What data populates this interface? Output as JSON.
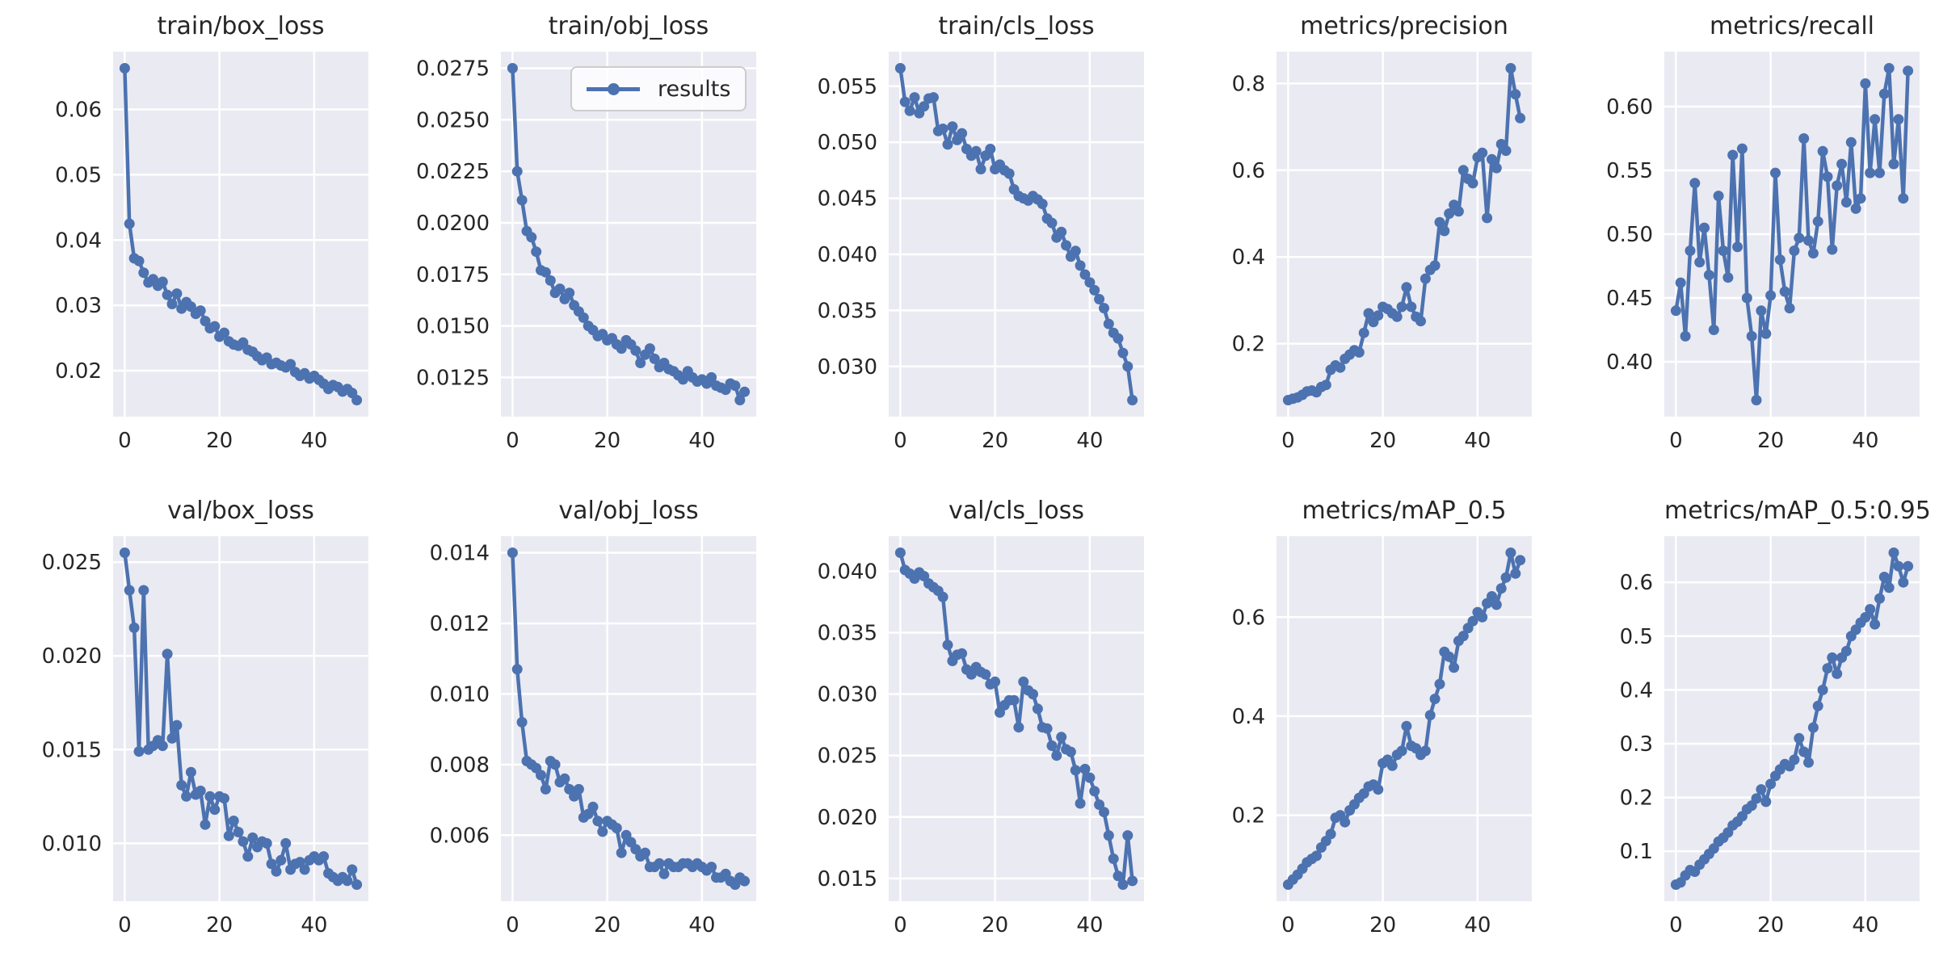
{
  "figure": {
    "background": "#ffffff",
    "rows": 2,
    "cols": 5,
    "description": "Training results grid of 10 line subplots over 50 epochs"
  },
  "style": {
    "line_color": "#4C72B0",
    "axes_bg": "#EAEAF2",
    "grid_color": "#ffffff",
    "text_color": "#262626",
    "legend_bg": "rgba(255,255,255,0.8)",
    "legend_border": "#cccccc"
  },
  "legend": {
    "label": "results",
    "position": "upper right",
    "shown_on": "train/obj_loss"
  },
  "chart_data": [
    {
      "type": "line",
      "title": "train/box_loss",
      "x_start": 0,
      "x_end": 49,
      "xticks": [
        0,
        20,
        40
      ],
      "xtick_labels": [
        "0",
        "20",
        "40"
      ],
      "xlim": [
        -2.45,
        51.45
      ],
      "yticks": [
        "0.02",
        "0.03",
        "0.04",
        "0.05",
        "0.06"
      ],
      "ytick_values": [
        0.02,
        0.03,
        0.04,
        0.05,
        0.06
      ],
      "ylim": [
        0.01296,
        0.06884
      ],
      "grid": true,
      "markers": true,
      "legend": false,
      "values": [
        0.0663,
        0.0425,
        0.0372,
        0.0368,
        0.035,
        0.0335,
        0.034,
        0.033,
        0.0336,
        0.0316,
        0.0302,
        0.0318,
        0.0295,
        0.0305,
        0.0298,
        0.0287,
        0.0292,
        0.0276,
        0.0265,
        0.0268,
        0.0252,
        0.0258,
        0.0245,
        0.024,
        0.0238,
        0.0243,
        0.0232,
        0.0229,
        0.0222,
        0.0216,
        0.022,
        0.021,
        0.0212,
        0.0208,
        0.0205,
        0.021,
        0.0198,
        0.0192,
        0.0196,
        0.0188,
        0.0192,
        0.0186,
        0.018,
        0.0172,
        0.0178,
        0.0175,
        0.0168,
        0.0172,
        0.0166,
        0.0155
      ]
    },
    {
      "type": "line",
      "title": "train/obj_loss",
      "x_start": 0,
      "x_end": 49,
      "xticks": [
        0,
        20,
        40
      ],
      "xtick_labels": [
        "0",
        "20",
        "40"
      ],
      "xlim": [
        -2.45,
        51.45
      ],
      "yticks": [
        "0.0125",
        "0.0150",
        "0.0175",
        "0.0200",
        "0.0225",
        "0.0250",
        "0.0275"
      ],
      "ytick_values": [
        0.0125,
        0.015,
        0.0175,
        0.02,
        0.0225,
        0.025,
        0.0275
      ],
      "ylim": [
        0.010595,
        0.028305
      ],
      "grid": true,
      "markers": true,
      "legend": true,
      "values": [
        0.0275,
        0.0225,
        0.0211,
        0.0196,
        0.0193,
        0.0186,
        0.0177,
        0.0176,
        0.0172,
        0.0166,
        0.0168,
        0.0163,
        0.0166,
        0.016,
        0.0157,
        0.0154,
        0.015,
        0.0148,
        0.0145,
        0.0146,
        0.0143,
        0.0144,
        0.0141,
        0.0139,
        0.0143,
        0.0141,
        0.0138,
        0.0132,
        0.0136,
        0.0139,
        0.0134,
        0.013,
        0.0132,
        0.0129,
        0.0128,
        0.0126,
        0.0124,
        0.0128,
        0.0125,
        0.0123,
        0.0124,
        0.0122,
        0.0125,
        0.0121,
        0.012,
        0.0119,
        0.0122,
        0.0121,
        0.0114,
        0.0118
      ]
    },
    {
      "type": "line",
      "title": "train/cls_loss",
      "x_start": 0,
      "x_end": 49,
      "xticks": [
        0,
        20,
        40
      ],
      "xtick_labels": [
        "0",
        "20",
        "40"
      ],
      "xlim": [
        -2.45,
        51.45
      ],
      "yticks": [
        "0.030",
        "0.035",
        "0.040",
        "0.045",
        "0.050",
        "0.055"
      ],
      "ytick_values": [
        0.03,
        0.035,
        0.04,
        0.045,
        0.05,
        0.055
      ],
      "ylim": [
        0.02552,
        0.05808
      ],
      "grid": true,
      "markers": true,
      "legend": false,
      "values": [
        0.0566,
        0.0536,
        0.0528,
        0.054,
        0.0526,
        0.0532,
        0.0539,
        0.054,
        0.051,
        0.0512,
        0.0498,
        0.0514,
        0.0502,
        0.0508,
        0.0494,
        0.0488,
        0.0492,
        0.0476,
        0.0488,
        0.0494,
        0.0476,
        0.048,
        0.0475,
        0.0472,
        0.0458,
        0.0452,
        0.045,
        0.0448,
        0.0452,
        0.0449,
        0.0445,
        0.0432,
        0.0428,
        0.0415,
        0.042,
        0.0408,
        0.0398,
        0.0403,
        0.039,
        0.0382,
        0.0375,
        0.0368,
        0.036,
        0.0352,
        0.0338,
        0.033,
        0.0325,
        0.0312,
        0.03,
        0.027
      ]
    },
    {
      "type": "line",
      "title": "metrics/precision",
      "x_start": 0,
      "x_end": 49,
      "xticks": [
        0,
        20,
        40
      ],
      "xtick_labels": [
        "0",
        "20",
        "40"
      ],
      "xlim": [
        -2.45,
        51.45
      ],
      "yticks": [
        "0.2",
        "0.4",
        "0.6",
        "0.8"
      ],
      "ytick_values": [
        0.2,
        0.4,
        0.6,
        0.8
      ],
      "ylim": [
        0.03175,
        0.87325
      ],
      "grid": true,
      "markers": true,
      "legend": false,
      "values": [
        0.07,
        0.073,
        0.076,
        0.082,
        0.09,
        0.092,
        0.088,
        0.1,
        0.105,
        0.14,
        0.15,
        0.145,
        0.165,
        0.175,
        0.185,
        0.18,
        0.225,
        0.27,
        0.25,
        0.265,
        0.285,
        0.28,
        0.27,
        0.262,
        0.285,
        0.33,
        0.285,
        0.262,
        0.252,
        0.35,
        0.37,
        0.38,
        0.48,
        0.46,
        0.5,
        0.52,
        0.505,
        0.6,
        0.58,
        0.57,
        0.63,
        0.64,
        0.49,
        0.625,
        0.605,
        0.66,
        0.645,
        0.835,
        0.775,
        0.72
      ]
    },
    {
      "type": "line",
      "title": "metrics/recall",
      "x_start": 0,
      "x_end": 49,
      "xticks": [
        0,
        20,
        40
      ],
      "xtick_labels": [
        "0",
        "20",
        "40"
      ],
      "xlim": [
        -2.45,
        51.45
      ],
      "yticks": [
        "0.40",
        "0.45",
        "0.50",
        "0.55",
        "0.60"
      ],
      "ytick_values": [
        0.4,
        0.45,
        0.5,
        0.55,
        0.6
      ],
      "ylim": [
        0.357,
        0.643
      ],
      "grid": true,
      "markers": true,
      "legend": false,
      "values": [
        0.44,
        0.462,
        0.42,
        0.487,
        0.54,
        0.478,
        0.505,
        0.468,
        0.425,
        0.53,
        0.487,
        0.466,
        0.562,
        0.49,
        0.567,
        0.45,
        0.42,
        0.37,
        0.44,
        0.422,
        0.452,
        0.548,
        0.48,
        0.455,
        0.442,
        0.487,
        0.497,
        0.575,
        0.495,
        0.485,
        0.51,
        0.565,
        0.545,
        0.488,
        0.538,
        0.555,
        0.525,
        0.572,
        0.52,
        0.528,
        0.618,
        0.548,
        0.59,
        0.548,
        0.61,
        0.63,
        0.555,
        0.59,
        0.528,
        0.628
      ]
    },
    {
      "type": "line",
      "title": "val/box_loss",
      "x_start": 0,
      "x_end": 49,
      "xticks": [
        0,
        20,
        40
      ],
      "xtick_labels": [
        "0",
        "20",
        "40"
      ],
      "xlim": [
        -2.45,
        51.45
      ],
      "yticks": [
        "0.010",
        "0.015",
        "0.020",
        "0.025"
      ],
      "ytick_values": [
        0.01,
        0.015,
        0.02,
        0.025
      ],
      "ylim": [
        0.006915,
        0.026385
      ],
      "grid": true,
      "markers": true,
      "legend": false,
      "values": [
        0.0255,
        0.0235,
        0.0215,
        0.0149,
        0.0235,
        0.015,
        0.0152,
        0.0155,
        0.0152,
        0.0201,
        0.0156,
        0.0163,
        0.0131,
        0.0125,
        0.0138,
        0.0126,
        0.0128,
        0.011,
        0.0125,
        0.0118,
        0.0125,
        0.0124,
        0.0104,
        0.0112,
        0.0106,
        0.0101,
        0.0093,
        0.0103,
        0.0098,
        0.0101,
        0.01,
        0.0089,
        0.0085,
        0.0091,
        0.01,
        0.0086,
        0.0089,
        0.009,
        0.0086,
        0.0091,
        0.0093,
        0.0091,
        0.0093,
        0.0084,
        0.0082,
        0.008,
        0.0082,
        0.008,
        0.0086,
        0.0078
      ]
    },
    {
      "type": "line",
      "title": "val/obj_loss",
      "x_start": 0,
      "x_end": 49,
      "xticks": [
        0,
        20,
        40
      ],
      "xtick_labels": [
        "0",
        "20",
        "40"
      ],
      "xlim": [
        -2.45,
        51.45
      ],
      "yticks": [
        "0.006",
        "0.008",
        "0.010",
        "0.012",
        "0.014"
      ],
      "ytick_values": [
        0.006,
        0.008,
        0.01,
        0.012,
        0.014
      ],
      "ylim": [
        0.00413,
        0.01447
      ],
      "grid": true,
      "markers": true,
      "legend": false,
      "values": [
        0.014,
        0.0107,
        0.0092,
        0.0081,
        0.008,
        0.0079,
        0.0077,
        0.0073,
        0.0081,
        0.008,
        0.0075,
        0.0076,
        0.0073,
        0.0071,
        0.0073,
        0.0065,
        0.0066,
        0.0068,
        0.0064,
        0.0061,
        0.0064,
        0.0063,
        0.0062,
        0.0055,
        0.006,
        0.0058,
        0.0056,
        0.0054,
        0.0055,
        0.0051,
        0.0051,
        0.0052,
        0.0049,
        0.0052,
        0.0051,
        0.0051,
        0.0052,
        0.0052,
        0.0051,
        0.0052,
        0.0051,
        0.005,
        0.0051,
        0.0048,
        0.0048,
        0.0049,
        0.0047,
        0.0046,
        0.0048,
        0.0047
      ]
    },
    {
      "type": "line",
      "title": "val/cls_loss",
      "x_start": 0,
      "x_end": 49,
      "xticks": [
        0,
        20,
        40
      ],
      "xtick_labels": [
        "0",
        "20",
        "40"
      ],
      "xlim": [
        -2.45,
        51.45
      ],
      "yticks": [
        "0.015",
        "0.020",
        "0.025",
        "0.030",
        "0.035",
        "0.040"
      ],
      "ytick_values": [
        0.015,
        0.02,
        0.025,
        0.03,
        0.035,
        0.04
      ],
      "ylim": [
        0.01315,
        0.04285
      ],
      "grid": true,
      "markers": true,
      "legend": false,
      "values": [
        0.0415,
        0.0401,
        0.0398,
        0.0394,
        0.0399,
        0.0396,
        0.039,
        0.0387,
        0.0384,
        0.0379,
        0.034,
        0.0327,
        0.0332,
        0.0333,
        0.032,
        0.0316,
        0.0322,
        0.0318,
        0.0316,
        0.0308,
        0.031,
        0.0285,
        0.0291,
        0.0295,
        0.0295,
        0.0273,
        0.031,
        0.0303,
        0.03,
        0.0288,
        0.0273,
        0.0272,
        0.0258,
        0.025,
        0.0265,
        0.0255,
        0.0253,
        0.0238,
        0.0211,
        0.0239,
        0.0232,
        0.0221,
        0.021,
        0.0204,
        0.0185,
        0.0166,
        0.0152,
        0.0145,
        0.0185,
        0.0148
      ]
    },
    {
      "type": "line",
      "title": "metrics/mAP_0.5",
      "x_start": 0,
      "x_end": 49,
      "xticks": [
        0,
        20,
        40
      ],
      "xtick_labels": [
        "0",
        "20",
        "40"
      ],
      "xlim": [
        -2.45,
        51.45
      ],
      "yticks": [
        "0.2",
        "0.4",
        "0.6"
      ],
      "ytick_values": [
        0.2,
        0.4,
        0.6
      ],
      "ylim": [
        0.0265,
        0.7635
      ],
      "grid": true,
      "markers": true,
      "legend": false,
      "values": [
        0.06,
        0.07,
        0.08,
        0.092,
        0.105,
        0.112,
        0.118,
        0.135,
        0.148,
        0.162,
        0.195,
        0.2,
        0.186,
        0.21,
        0.222,
        0.235,
        0.244,
        0.258,
        0.262,
        0.252,
        0.305,
        0.312,
        0.3,
        0.322,
        0.33,
        0.38,
        0.34,
        0.335,
        0.322,
        0.33,
        0.402,
        0.435,
        0.465,
        0.53,
        0.52,
        0.498,
        0.552,
        0.562,
        0.578,
        0.592,
        0.61,
        0.6,
        0.628,
        0.642,
        0.625,
        0.658,
        0.68,
        0.73,
        0.688,
        0.715
      ]
    },
    {
      "type": "line",
      "title": "metrics/mAP_0.5:0.95",
      "x_start": 0,
      "x_end": 49,
      "xticks": [
        0,
        20,
        40
      ],
      "xtick_labels": [
        "0",
        "20",
        "40"
      ],
      "xlim": [
        -2.45,
        51.45
      ],
      "yticks": [
        "0.1",
        "0.2",
        "0.3",
        "0.4",
        "0.5",
        "0.6"
      ],
      "ytick_values": [
        0.1,
        0.2,
        0.3,
        0.4,
        0.5,
        0.6
      ],
      "ylim": [
        0.00715,
        0.68585
      ],
      "grid": true,
      "markers": true,
      "legend": false,
      "values": [
        0.038,
        0.042,
        0.055,
        0.065,
        0.062,
        0.075,
        0.085,
        0.095,
        0.105,
        0.118,
        0.125,
        0.135,
        0.148,
        0.155,
        0.165,
        0.178,
        0.185,
        0.198,
        0.215,
        0.192,
        0.225,
        0.24,
        0.252,
        0.262,
        0.258,
        0.27,
        0.31,
        0.285,
        0.265,
        0.33,
        0.37,
        0.4,
        0.44,
        0.46,
        0.43,
        0.46,
        0.472,
        0.5,
        0.512,
        0.525,
        0.535,
        0.55,
        0.522,
        0.57,
        0.61,
        0.59,
        0.655,
        0.63,
        0.6,
        0.63
      ]
    }
  ]
}
